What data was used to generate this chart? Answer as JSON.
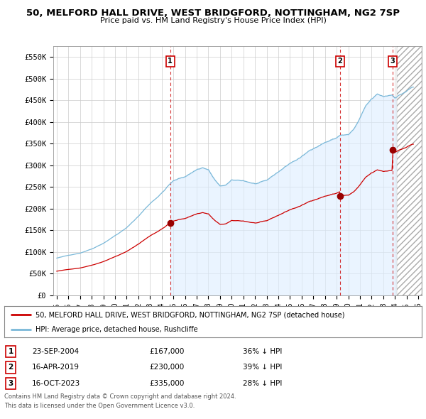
{
  "title": "50, MELFORD HALL DRIVE, WEST BRIDGFORD, NOTTINGHAM, NG2 7SP",
  "subtitle": "Price paid vs. HM Land Registry's House Price Index (HPI)",
  "legend_line1": "50, MELFORD HALL DRIVE, WEST BRIDGFORD, NOTTINGHAM, NG2 7SP (detached house)",
  "legend_line2": "HPI: Average price, detached house, Rushcliffe",
  "footer1": "Contains HM Land Registry data © Crown copyright and database right 2024.",
  "footer2": "This data is licensed under the Open Government Licence v3.0.",
  "purchases": [
    {
      "label": "1",
      "date": "23-SEP-2004",
      "price": 167000,
      "pct": "36%",
      "direction": "↓",
      "x_year": 2004.73
    },
    {
      "label": "2",
      "date": "16-APR-2019",
      "price": 230000,
      "pct": "39%",
      "direction": "↓",
      "x_year": 2019.29
    },
    {
      "label": "3",
      "date": "16-OCT-2023",
      "price": 335000,
      "pct": "28%",
      "direction": "↓",
      "x_year": 2023.79
    }
  ],
  "ylim": [
    0,
    575000
  ],
  "xlim": [
    1994.7,
    2026.3
  ],
  "yticks": [
    0,
    50000,
    100000,
    150000,
    200000,
    250000,
    300000,
    350000,
    400000,
    450000,
    500000,
    550000
  ],
  "ytick_labels": [
    "£0",
    "£50K",
    "£100K",
    "£150K",
    "£200K",
    "£250K",
    "£300K",
    "£350K",
    "£400K",
    "£450K",
    "£500K",
    "£550K"
  ],
  "xticks": [
    1995,
    1996,
    1997,
    1998,
    1999,
    2000,
    2001,
    2002,
    2003,
    2004,
    2005,
    2006,
    2007,
    2008,
    2009,
    2010,
    2011,
    2012,
    2013,
    2014,
    2015,
    2016,
    2017,
    2018,
    2019,
    2020,
    2021,
    2022,
    2023,
    2024,
    2025,
    2026
  ],
  "hpi_color": "#7ab8d8",
  "price_color": "#cc0000",
  "marker_color": "#990000",
  "dashed_color": "#cc0000",
  "grid_color": "#cccccc",
  "bg_color": "#ffffff",
  "fill_color": "#ddeeff",
  "hatch_start": 2024.17
}
